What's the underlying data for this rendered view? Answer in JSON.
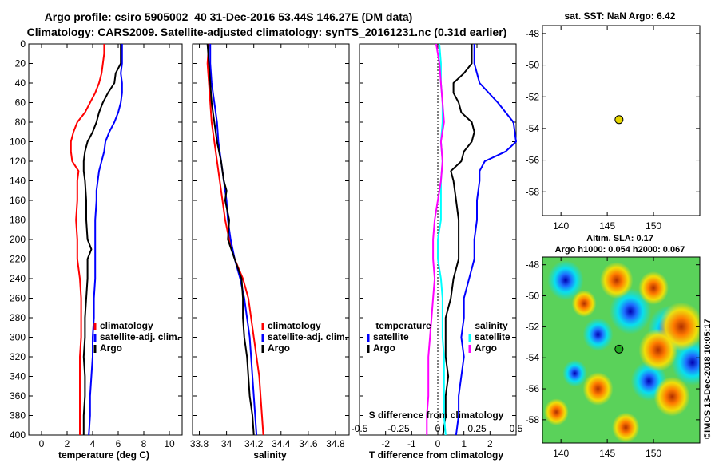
{
  "header": {
    "title_line1": "Argo profile: csiro 5905002_40 31-Dec-2016 53.44S 146.27E (DM data)",
    "title_line2": "Climatology: CARS2009. Satellite-adjusted climatology: synTS_20161231.nc (0.31d earlier)"
  },
  "colors": {
    "climatology": "#ff0000",
    "satellite": "#0000ff",
    "argo": "#000000",
    "salinity_diff": "#ff00ff",
    "salinity_sat_diff": "#00ffff",
    "marker": "#e6d600"
  },
  "depth_ticks": [
    "0",
    "20",
    "40",
    "60",
    "80",
    "100",
    "120",
    "140",
    "160",
    "180",
    "200",
    "220",
    "240",
    "260",
    "280",
    "300",
    "320",
    "340",
    "360",
    "380",
    "400"
  ],
  "chart_data": [
    {
      "type": "line",
      "id": "temperature",
      "xlabel": "temperature (deg C)",
      "xlim": [
        -1,
        11
      ],
      "ylim": [
        0,
        400
      ],
      "xticks": [
        "0",
        "2",
        "4",
        "6",
        "8",
        "10"
      ],
      "legend": [
        "climatology",
        "satellite-adj. clim.",
        "Argo"
      ],
      "series": [
        {
          "name": "climatology",
          "color": "#ff0000",
          "depth": [
            0,
            10,
            20,
            30,
            40,
            50,
            60,
            70,
            80,
            90,
            100,
            110,
            120,
            130,
            140,
            160,
            180,
            200,
            220,
            240,
            260,
            280,
            300,
            320,
            340,
            360,
            380,
            400
          ],
          "values": [
            4.9,
            4.9,
            4.8,
            4.7,
            4.5,
            4.2,
            3.8,
            3.4,
            2.8,
            2.5,
            2.3,
            2.3,
            2.4,
            2.9,
            2.8,
            2.8,
            2.7,
            2.8,
            2.8,
            3.0,
            3.1,
            3.1,
            3.1,
            3.0,
            3.0,
            3.0,
            3.0,
            3.0
          ]
        },
        {
          "name": "satellite-adj. clim.",
          "color": "#0000ff",
          "depth": [
            0,
            10,
            20,
            30,
            40,
            50,
            60,
            70,
            80,
            90,
            100,
            110,
            120,
            130,
            140,
            150,
            160,
            180,
            200,
            220,
            240,
            260,
            280,
            300,
            320,
            340,
            360,
            380,
            400
          ],
          "values": [
            6.3,
            6.3,
            6.3,
            6.2,
            6.3,
            6.3,
            6.2,
            6.0,
            5.7,
            5.3,
            5.0,
            4.9,
            4.7,
            4.5,
            4.4,
            4.3,
            4.3,
            4.2,
            4.2,
            4.2,
            4.2,
            4.1,
            4.1,
            4.0,
            4.0,
            3.9,
            3.8,
            3.8,
            3.7
          ]
        },
        {
          "name": "Argo",
          "color": "#000000",
          "depth": [
            0,
            10,
            20,
            30,
            40,
            50,
            60,
            70,
            80,
            90,
            100,
            110,
            120,
            130,
            140,
            160,
            180,
            200,
            210,
            220,
            240,
            260,
            280,
            300,
            320,
            340,
            360,
            380,
            400
          ],
          "values": [
            6.2,
            6.2,
            6.2,
            5.8,
            5.7,
            5.2,
            4.8,
            4.5,
            4.3,
            4.0,
            3.6,
            3.4,
            3.3,
            3.3,
            3.4,
            3.5,
            3.5,
            3.6,
            3.9,
            3.6,
            3.6,
            3.5,
            3.4,
            3.4,
            3.3,
            3.4,
            3.4,
            3.3,
            3.3
          ]
        }
      ]
    },
    {
      "type": "line",
      "id": "salinity",
      "xlabel": "salinity",
      "xlim": [
        33.75,
        34.9
      ],
      "ylim": [
        0,
        400
      ],
      "xticks": [
        "33.8",
        "34",
        "34.2",
        "34.4",
        "34.6",
        "34.8"
      ],
      "xtick_values": [
        33.8,
        34.0,
        34.2,
        34.4,
        34.6,
        34.8
      ],
      "legend": [
        "climatology",
        "satellite-adj. clim.",
        "Argo"
      ],
      "series": [
        {
          "name": "climatology",
          "color": "#ff0000",
          "depth": [
            0,
            20,
            40,
            60,
            80,
            100,
            120,
            140,
            160,
            180,
            200,
            220,
            240,
            260,
            280,
            300,
            320,
            340,
            360,
            380,
            400
          ],
          "values": [
            33.87,
            33.86,
            33.87,
            33.88,
            33.89,
            33.91,
            33.93,
            33.95,
            33.97,
            33.99,
            34.02,
            34.06,
            34.12,
            34.16,
            34.18,
            34.2,
            34.22,
            34.24,
            34.25,
            34.26,
            34.27
          ]
        },
        {
          "name": "satellite-adj. clim.",
          "color": "#0000ff",
          "depth": [
            0,
            20,
            40,
            60,
            80,
            100,
            120,
            140,
            160,
            180,
            200,
            220,
            240,
            260,
            280,
            300,
            320,
            340,
            360,
            380,
            400
          ],
          "values": [
            33.88,
            33.88,
            33.89,
            33.91,
            33.93,
            33.94,
            33.96,
            33.98,
            34.0,
            34.01,
            34.03,
            34.06,
            34.1,
            34.13,
            34.15,
            34.17,
            34.18,
            34.19,
            34.2,
            34.21,
            34.22
          ]
        },
        {
          "name": "Argo",
          "color": "#000000",
          "depth": [
            0,
            20,
            40,
            60,
            80,
            100,
            120,
            140,
            150,
            160,
            180,
            200,
            220,
            240,
            260,
            280,
            300,
            320,
            340,
            360,
            380,
            400
          ],
          "values": [
            33.86,
            33.87,
            33.88,
            33.89,
            33.91,
            33.93,
            33.96,
            33.98,
            34.0,
            33.99,
            34.02,
            34.01,
            34.06,
            34.11,
            34.12,
            34.12,
            34.13,
            34.15,
            34.16,
            34.17,
            34.19,
            34.2
          ]
        }
      ]
    },
    {
      "type": "line",
      "id": "difference",
      "xlabel": "T difference from climatology",
      "top_xlabel": "S difference from climatology",
      "xlim": [
        -3,
        3
      ],
      "ylim": [
        0,
        400
      ],
      "xticks": [
        "-2",
        "-1",
        "0",
        "1",
        "2"
      ],
      "xtick_values": [
        -2,
        -1,
        0,
        1,
        2
      ],
      "top_xticks": [
        "-0.5",
        "-0.25",
        "0",
        "0.25",
        "0.5"
      ],
      "top_xtick_values": [
        -0.5,
        -0.25,
        0,
        0.25,
        0.5
      ],
      "legend_left_title": "temperature",
      "legend_left": [
        "satellite",
        "Argo"
      ],
      "legend_right_title": "salinity",
      "legend_right": [
        "satellite",
        "Argo"
      ],
      "series": [
        {
          "name": "temperature satellite",
          "color": "#0000ff",
          "depth": [
            0,
            20,
            40,
            60,
            80,
            100,
            110,
            120,
            130,
            140,
            160,
            180,
            200,
            220,
            240,
            260,
            280,
            300,
            320,
            340,
            360,
            380,
            400
          ],
          "values": [
            1.4,
            1.4,
            1.6,
            2.3,
            2.9,
            3.0,
            2.6,
            1.8,
            1.6,
            1.6,
            1.5,
            1.5,
            1.4,
            1.4,
            1.2,
            1.0,
            1.0,
            0.9,
            1.0,
            0.9,
            0.8,
            0.8,
            0.7
          ]
        },
        {
          "name": "temperature Argo",
          "color": "#000000",
          "depth": [
            0,
            20,
            30,
            40,
            50,
            60,
            70,
            80,
            90,
            100,
            110,
            120,
            130,
            140,
            160,
            180,
            200,
            220,
            240,
            260,
            280,
            300,
            320,
            340,
            360,
            380,
            400
          ],
          "values": [
            1.3,
            1.3,
            1.0,
            0.6,
            0.6,
            0.8,
            0.9,
            1.3,
            1.4,
            1.3,
            1.0,
            0.9,
            0.5,
            0.6,
            0.7,
            0.8,
            0.8,
            0.8,
            0.6,
            0.5,
            0.3,
            0.3,
            0.3,
            0.4,
            0.3,
            0.3,
            0.2
          ]
        },
        {
          "name": "salinity satellite",
          "color": "#00ffff",
          "depth": [
            0,
            20,
            40,
            60,
            80,
            100,
            120,
            140,
            160,
            180,
            200,
            220,
            240,
            260,
            280,
            300,
            320,
            340,
            360,
            380,
            400
          ],
          "values": [
            0.01,
            0.02,
            0.02,
            0.03,
            0.03,
            0.02,
            0.03,
            0.02,
            0.02,
            0.02,
            0.0,
            0.0,
            0.02,
            0.03,
            0.03,
            0.03,
            0.04,
            0.04,
            0.04,
            0.04,
            0.05
          ]
        },
        {
          "name": "salinity Argo",
          "color": "#ff00ff",
          "depth": [
            0,
            20,
            40,
            60,
            80,
            100,
            120,
            140,
            160,
            180,
            200,
            220,
            240,
            260,
            280,
            300,
            320,
            340,
            360,
            380,
            400
          ],
          "values": [
            -0.01,
            0.01,
            0.02,
            0.03,
            0.04,
            0.02,
            0.03,
            0.02,
            0.0,
            -0.02,
            -0.03,
            -0.03,
            -0.02,
            -0.03,
            -0.04,
            -0.05,
            -0.06,
            -0.06,
            -0.06,
            -0.07,
            -0.07
          ]
        }
      ]
    },
    {
      "type": "scatter",
      "id": "sst-map",
      "title": "sat. SST: NaN Argo: 6.42",
      "xlim": [
        138,
        155
      ],
      "ylim": [
        -59.5,
        -47.5
      ],
      "xticks": [
        "140",
        "145",
        "150"
      ],
      "xtick_values": [
        140,
        145,
        150
      ],
      "yticks": [
        "-48",
        "-50",
        "-52",
        "-54",
        "-56",
        "-58"
      ],
      "ytick_values": [
        -48,
        -50,
        -52,
        -54,
        -56,
        -58
      ],
      "points": [
        {
          "lon": 146.27,
          "lat": -53.44,
          "color": "#e6d600"
        }
      ]
    },
    {
      "type": "heatmap",
      "id": "sla-map",
      "title_line1": "Altim. SLA: 0.17",
      "title_line2": "Argo h1000: 0.054 h2000: 0.067",
      "xlim": [
        138,
        155
      ],
      "ylim": [
        -59.5,
        -47.5
      ],
      "xticks": [
        "140",
        "145",
        "150"
      ],
      "xtick_values": [
        140,
        145,
        150
      ],
      "yticks": [
        "-48",
        "-50",
        "-52",
        "-54",
        "-56",
        "-58"
      ],
      "ytick_values": [
        -48,
        -50,
        -52,
        -54,
        -56,
        -58
      ],
      "points": [
        {
          "lon": 146.27,
          "lat": -53.44,
          "color": "#22aa22"
        }
      ],
      "blobs": [
        {
          "lon": 140.5,
          "lat": -49.0,
          "value": -0.7
        },
        {
          "lon": 147.5,
          "lat": -51.0,
          "value": -0.9
        },
        {
          "lon": 144.0,
          "lat": -52.5,
          "value": -0.5
        },
        {
          "lon": 151.8,
          "lat": -52.2,
          "value": -1.0
        },
        {
          "lon": 154.2,
          "lat": -54.3,
          "value": -0.9
        },
        {
          "lon": 149.5,
          "lat": -55.5,
          "value": -0.7
        },
        {
          "lon": 141.5,
          "lat": -55.0,
          "value": -0.3
        },
        {
          "lon": 153.0,
          "lat": -52.0,
          "value": 1.0
        },
        {
          "lon": 150.5,
          "lat": -53.5,
          "value": 0.8
        },
        {
          "lon": 146.0,
          "lat": -49.0,
          "value": 0.6
        },
        {
          "lon": 150.0,
          "lat": -49.5,
          "value": 0.5
        },
        {
          "lon": 152.0,
          "lat": -56.5,
          "value": 0.7
        },
        {
          "lon": 144.0,
          "lat": -56.0,
          "value": 0.5
        },
        {
          "lon": 147.0,
          "lat": -58.5,
          "value": 0.4
        },
        {
          "lon": 139.5,
          "lat": -57.5,
          "value": 0.3
        },
        {
          "lon": 142.5,
          "lat": -50.5,
          "value": 0.3
        }
      ]
    }
  ],
  "watermark": "©IMOS 13-Dec-2018 10:05:17"
}
